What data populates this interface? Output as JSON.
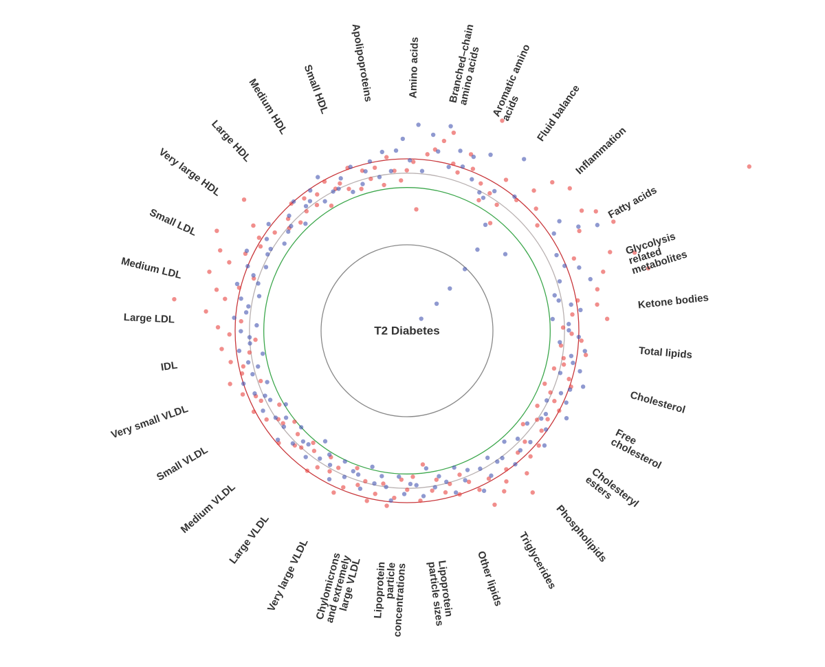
{
  "chart_data": {
    "type": "radial-scatter",
    "title": "T2 Diabetes",
    "categories": [
      "Amino acids",
      "Branched–chain\namino acids",
      "Aromatic amino\nacids",
      "Fluid balance",
      "Inflammation",
      "Fatty acids",
      "Glycolysis\nrelated\nmetabolites",
      "Ketone bodies",
      "Total lipids",
      "Cholesterol",
      "Free\ncholesterol",
      "Cholesteryl\nesters",
      "Phospholipids",
      "Triglycerides",
      "Other lipids",
      "Lipoprotein\nparticle sizes",
      "Lipoprotein\nparticle\nconcentrations",
      "Chylomicrons\nand extremely\nlarge VLDL",
      "Very large VLDL",
      "Large VLDL",
      "Medium VLDL",
      "Small VLDL",
      "Very small VLDL",
      "IDL",
      "Large LDL",
      "Medium LDL",
      "Small LDL",
      "Very large HDL",
      "Large HDL",
      "Medium HDL",
      "Small HDL",
      "Apolipoproteins"
    ],
    "series": [
      {
        "color": "#e8423f",
        "values": [
          [
            0.5,
            1.2,
            1.8,
            -1.5,
            2.4
          ],
          [
            2.8,
            3.5,
            4.2,
            2.1,
            1.6
          ],
          [
            3.1,
            2.2,
            6.1,
            1.5,
            0.4
          ],
          [
            1.2,
            2.6,
            0.8,
            -0.5,
            1.9
          ],
          [
            3.2,
            4.5,
            2.4,
            5.1,
            1.7
          ],
          [
            4.8,
            5.6,
            3.9,
            6.3,
            16.5,
            2.7
          ],
          [
            5.2,
            6.8,
            4.3,
            7.4,
            3.6
          ],
          [
            2.1,
            3.4,
            1.6,
            4.0,
            0.9
          ],
          [
            1.5,
            2.2,
            0.8,
            2.6,
            1.1
          ],
          [
            1.2,
            0.6,
            1.8,
            2.1,
            0.3
          ],
          [
            0.9,
            1.4,
            2.0,
            0.5,
            1.6
          ],
          [
            1.0,
            1.7,
            0.4,
            2.2,
            1.3
          ],
          [
            2.3,
            1.5,
            3.0,
            4.3,
            1.9
          ],
          [
            2.6,
            3.1,
            1.8,
            3.6,
            2.2
          ],
          [
            1.4,
            0.7,
            2.0,
            1.1,
            1.6
          ],
          [
            0.6,
            1.3,
            -0.6,
            1.9,
            0.2
          ],
          [
            1.1,
            0.4,
            1.7,
            2.3,
            0.8
          ],
          [
            1.6,
            2.2,
            0.9,
            1.3,
            0.2
          ],
          [
            1.8,
            2.4,
            0.7,
            1.2,
            0.3
          ],
          [
            1.4,
            2.0,
            0.6,
            0.2,
            1.0
          ],
          [
            1.2,
            0.5,
            1.9,
            0.1,
            0.8
          ],
          [
            0.9,
            1.6,
            0.3,
            2.1,
            1.3
          ],
          [
            1.5,
            2.3,
            0.8,
            2.9,
            1.9
          ],
          [
            1.7,
            2.5,
            1.1,
            3.0,
            0.6
          ],
          [
            2.4,
            3.2,
            1.6,
            4.1,
            6.4
          ],
          [
            2.9,
            3.6,
            2.1,
            4.4,
            1.3
          ],
          [
            3.3,
            4.2,
            2.5,
            5.0,
            1.8
          ],
          [
            2.2,
            3.0,
            1.5,
            4.6,
            0.9
          ],
          [
            1.4,
            0.6,
            2.0,
            0.9,
            1.7
          ],
          [
            0.8,
            1.4,
            0.2,
            1.9,
            1.1
          ],
          [
            1.3,
            0.7,
            2.1,
            0.4,
            1.6
          ],
          [
            0.9,
            1.6,
            0.3,
            2.2,
            1.2
          ]
        ]
      },
      {
        "color": "#4455b0",
        "values": [
          [
            2.6,
            3.4,
            1.9,
            4.4,
            1.2
          ],
          [
            3.8,
            2.7,
            4.6,
            1.8,
            3.1
          ],
          [
            2.1,
            3.0,
            1.5,
            3.6,
            0.9
          ],
          [
            0.7,
            1.5,
            4.5,
            -0.8,
            2.0
          ],
          [
            -2.5,
            -4.1,
            -5.8,
            -7.2,
            -8.7,
            -1.3
          ],
          [
            3.1,
            2.3,
            4.0,
            5.2,
            1.7
          ],
          [
            1.9,
            2.8,
            1.2,
            3.3,
            0.6
          ],
          [
            0.8,
            1.6,
            2.2,
            0.2,
            1.3
          ],
          [
            1.3,
            2.0,
            0.7,
            2.5,
            1.6
          ],
          [
            1.8,
            2.4,
            1.1,
            2.9,
            2.1
          ],
          [
            1.6,
            2.2,
            0.9,
            2.7,
            1.3
          ],
          [
            1.2,
            1.9,
            0.6,
            2.5,
            1.6
          ],
          [
            0.8,
            1.5,
            0.3,
            2.0,
            1.1
          ],
          [
            1.1,
            0.5,
            1.7,
            0.9,
            2.4
          ],
          [
            0.6,
            1.2,
            0.1,
            1.8,
            0.9
          ],
          [
            0.4,
            1.1,
            -0.3,
            1.6,
            0.8
          ],
          [
            0.7,
            1.4,
            0.2,
            1.9,
            1.0
          ],
          [
            0.3,
            0.9,
            -0.2,
            1.5,
            0.6
          ],
          [
            0.5,
            1.1,
            0.1,
            1.7,
            0.8
          ],
          [
            0.2,
            0.8,
            -0.4,
            1.3,
            0.5
          ],
          [
            0.6,
            1.2,
            0.0,
            1.8,
            0.9
          ],
          [
            0.4,
            1.0,
            -0.1,
            1.5,
            0.7
          ],
          [
            0.9,
            1.5,
            0.4,
            2.0,
            1.2
          ],
          [
            0.7,
            1.3,
            0.2,
            1.8,
            1.0
          ],
          [
            1.0,
            1.6,
            0.5,
            2.1,
            1.3
          ],
          [
            1.2,
            1.8,
            0.6,
            2.3,
            0.9
          ],
          [
            1.4,
            2.0,
            0.8,
            2.5,
            1.1
          ],
          [
            1.1,
            1.7,
            0.5,
            2.2,
            0.8
          ],
          [
            0.9,
            1.5,
            0.3,
            2.0,
            1.2
          ],
          [
            1.3,
            1.9,
            0.7,
            2.4,
            1.0
          ],
          [
            1.0,
            1.6,
            0.4,
            2.1,
            0.7
          ],
          [
            1.5,
            2.1,
            0.9,
            2.6,
            1.2
          ]
        ]
      }
    ],
    "rlim": [
      -10,
      8
    ],
    "rticks": [
      -4,
      0,
      1,
      2
    ],
    "rtick_colors": [
      "#888888",
      "#3aa64a",
      "#b8b0b0",
      "#c8363a"
    ]
  }
}
